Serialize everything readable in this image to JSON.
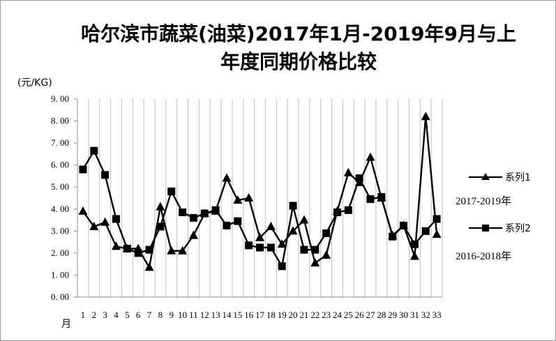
{
  "chart_data": {
    "type": "line",
    "title_line1": "哈尔滨市蔬菜(油菜)2017年1月-2019年9月与上",
    "title_line2": "年度同期价格比较",
    "ylabel": "(元/KG)",
    "xlabel": "月",
    "ylim": [
      0,
      9
    ],
    "y_ticks": [
      "0.00",
      "1.00",
      "2.00",
      "3.00",
      "4.00",
      "5.00",
      "6.00",
      "7.00",
      "8.00",
      "9.00"
    ],
    "categories": [
      "1",
      "2",
      "3",
      "4",
      "5",
      "6",
      "7",
      "8",
      "9",
      "10",
      "11",
      "12",
      "13",
      "14",
      "15",
      "16",
      "17",
      "18",
      "19",
      "20",
      "21",
      "22",
      "23",
      "24",
      "25",
      "26",
      "27",
      "28",
      "29",
      "30",
      "31",
      "32",
      "33"
    ],
    "series": [
      {
        "name": "系列1",
        "note": "2017-2019年",
        "marker": "triangle",
        "values": [
          3.9,
          3.2,
          3.4,
          2.3,
          2.2,
          2.2,
          1.35,
          4.1,
          2.1,
          2.1,
          2.8,
          3.8,
          3.9,
          5.4,
          4.4,
          4.5,
          2.7,
          3.2,
          2.4,
          3.0,
          3.5,
          1.55,
          1.9,
          3.9,
          5.65,
          5.2,
          6.35,
          4.5,
          2.8,
          3.25,
          1.85,
          8.2,
          2.85
        ]
      },
      {
        "name": "系列2",
        "note": "2016-2018年",
        "marker": "square",
        "values": [
          5.8,
          6.65,
          5.55,
          3.55,
          2.2,
          2.0,
          2.15,
          3.2,
          4.8,
          3.85,
          3.6,
          3.8,
          3.95,
          3.25,
          3.45,
          2.35,
          2.25,
          2.25,
          1.4,
          4.15,
          2.15,
          2.15,
          2.9,
          3.85,
          3.95,
          5.4,
          4.45,
          4.55,
          2.75,
          3.25,
          2.4,
          3.0,
          3.55
        ]
      }
    ],
    "grid": "vertical",
    "legend_position": "right"
  }
}
